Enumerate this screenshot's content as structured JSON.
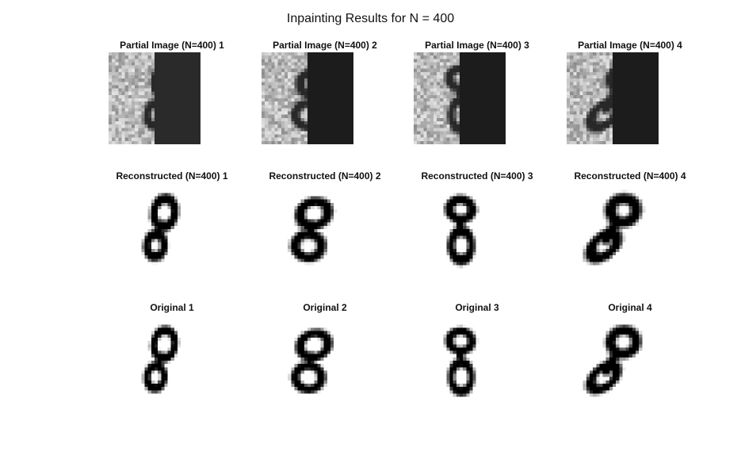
{
  "window": {
    "title": "Inpainting Results for N = 400"
  },
  "rows": [
    {
      "kind": "partial",
      "panels": [
        {
          "title": "Partial Image (N=400) 1",
          "mask_gray": "#2a2a2a",
          "variant": 1
        },
        {
          "title": "Partial Image (N=400) 2",
          "mask_gray": "#1c1c1c",
          "variant": 2
        },
        {
          "title": "Partial Image (N=400) 3",
          "mask_gray": "#1c1c1c",
          "variant": 3
        },
        {
          "title": "Partial Image (N=400) 4",
          "mask_gray": "#1c1c1c",
          "variant": 4
        }
      ]
    },
    {
      "kind": "reconstructed",
      "panels": [
        {
          "title": "Reconstructed (N=400) 1",
          "variant": 1
        },
        {
          "title": "Reconstructed (N=400) 2",
          "variant": 2
        },
        {
          "title": "Reconstructed (N=400) 3",
          "variant": 3
        },
        {
          "title": "Reconstructed (N=400) 4",
          "variant": 4
        }
      ]
    },
    {
      "kind": "original",
      "panels": [
        {
          "title": "Original 1",
          "variant": 1
        },
        {
          "title": "Original 2",
          "variant": 2
        },
        {
          "title": "Original 3",
          "variant": 3
        },
        {
          "title": "Original 4",
          "variant": 4
        }
      ]
    }
  ],
  "colors": {
    "background": "#ffffff",
    "ink": "#000000",
    "noise_base": "#c8c8c8"
  }
}
